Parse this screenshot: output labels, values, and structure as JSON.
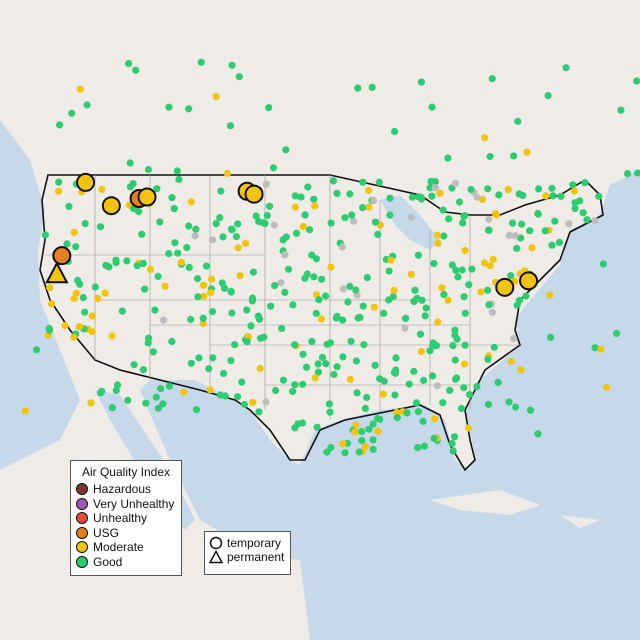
{
  "legend": {
    "title": "Air Quality Index",
    "categories": [
      {
        "label": "Hazardous",
        "color": "#7e3530"
      },
      {
        "label": "Very Unhealthy",
        "color": "#9b59b6"
      },
      {
        "label": "Unhealthy",
        "color": "#e74c3c"
      },
      {
        "label": "USG",
        "color": "#e67e22"
      },
      {
        "label": "Moderate",
        "color": "#f1c40f"
      },
      {
        "label": "Good",
        "color": "#2ecc71"
      }
    ],
    "shapes": [
      {
        "label": "temporary",
        "shape": "circle"
      },
      {
        "label": "permanent",
        "shape": "triangle"
      }
    ]
  },
  "colors": {
    "ocean": "#c6d9ea",
    "land": "#efebe6",
    "no_data": "#bdbdbd",
    "border": "#111111"
  },
  "highlighted_monitors": [
    {
      "lat": 48.5,
      "lon": -119.4,
      "category": "Moderate",
      "shape": "circle"
    },
    {
      "lat": 46.9,
      "lon": -116.8,
      "category": "Moderate",
      "shape": "circle"
    },
    {
      "lat": 47.4,
      "lon": -114.0,
      "category": "USG",
      "shape": "circle"
    },
    {
      "lat": 47.5,
      "lon": -113.2,
      "category": "Moderate",
      "shape": "circle"
    },
    {
      "lat": 47.9,
      "lon": -103.1,
      "category": "Moderate",
      "shape": "circle"
    },
    {
      "lat": 47.7,
      "lon": -102.4,
      "category": "Moderate",
      "shape": "circle"
    },
    {
      "lat": 43.3,
      "lon": -121.8,
      "category": "USG",
      "shape": "circle"
    },
    {
      "lat": 41.9,
      "lon": -122.3,
      "category": "Moderate",
      "shape": "triangle"
    },
    {
      "lat": 40.9,
      "lon": -77.1,
      "category": "Moderate",
      "shape": "circle"
    },
    {
      "lat": 41.4,
      "lon": -74.7,
      "category": "Moderate",
      "shape": "circle"
    }
  ]
}
